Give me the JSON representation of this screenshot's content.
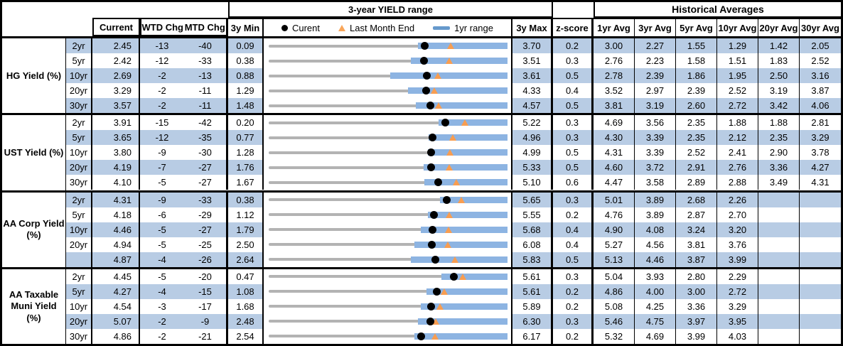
{
  "title_row": {
    "yield_range": "3-year YIELD range",
    "historical_averages": "Historical Averages"
  },
  "columns": {
    "current": "Current",
    "wtd_chg": "WTD Chg",
    "mtd_chg": "MTD Chg",
    "min_3y": "3y Min",
    "max_3y": "3y Max",
    "z_score": "z-score",
    "averages": [
      "1yr Avg",
      "3yr Avg",
      "5yr Avg",
      "10yr Avg",
      "20yr Avg",
      "30yr Avg"
    ]
  },
  "legend": {
    "current": "Curent",
    "last_month_end": "Last Month End",
    "range_1yr": "1yr range"
  },
  "colors": {
    "stripe": "#b8cce4",
    "bar_1yr_range": "#8db4e2",
    "track_3y_range": "#b3b3b3",
    "current_marker": "#000000",
    "last_month_end_marker": "#f79d51",
    "legend_dash": "#6699cc",
    "border": "#000000"
  },
  "chart_data": {
    "type": "table",
    "title": "3-year YIELD range",
    "legend_entries": [
      "Curent",
      "Last Month End",
      "1yr range"
    ],
    "marker_rule": "current = black dot, last month end = current - mtd_chg/100 (orange triangle), 1yr range = blue bar from range1yr_lo to range1yr_hi on a grey 3y min-max track",
    "groups": [
      {
        "label": "HG Yield (%)",
        "rows": [
          {
            "tenor": "2yr",
            "current": "2.45",
            "wtd": "-13",
            "mtd": "-40",
            "min_3y": "0.09",
            "max_3y": "3.70",
            "z_score": "0.2",
            "range1yr_lo": 2.35,
            "range1yr_hi": 3.7,
            "averages": [
              "3.00",
              "2.27",
              "1.55",
              "1.29",
              "1.42",
              "2.05"
            ]
          },
          {
            "tenor": "5yr",
            "current": "2.42",
            "wtd": "-12",
            "mtd": "-33",
            "min_3y": "0.38",
            "max_3y": "3.51",
            "z_score": "0.3",
            "range1yr_lo": 2.24,
            "range1yr_hi": 3.51,
            "averages": [
              "2.76",
              "2.23",
              "1.58",
              "1.51",
              "1.83",
              "2.52"
            ]
          },
          {
            "tenor": "10yr",
            "current": "2.69",
            "wtd": "-2",
            "mtd": "-13",
            "min_3y": "0.88",
            "max_3y": "3.61",
            "z_score": "0.5",
            "range1yr_lo": 2.27,
            "range1yr_hi": 3.61,
            "averages": [
              "2.78",
              "2.39",
              "1.86",
              "1.95",
              "2.50",
              "3.16"
            ]
          },
          {
            "tenor": "20yr",
            "current": "3.29",
            "wtd": "-2",
            "mtd": "-11",
            "min_3y": "1.29",
            "max_3y": "4.33",
            "z_score": "0.4",
            "range1yr_lo": 3.06,
            "range1yr_hi": 4.33,
            "averages": [
              "3.52",
              "2.97",
              "2.39",
              "2.52",
              "3.19",
              "3.87"
            ]
          },
          {
            "tenor": "30yr",
            "current": "3.57",
            "wtd": "-2",
            "mtd": "-11",
            "min_3y": "1.48",
            "max_3y": "4.57",
            "z_score": "0.5",
            "range1yr_lo": 3.38,
            "range1yr_hi": 4.57,
            "averages": [
              "3.81",
              "3.19",
              "2.60",
              "2.72",
              "3.42",
              "4.06"
            ]
          }
        ]
      },
      {
        "label": "UST Yield (%)",
        "rows": [
          {
            "tenor": "2yr",
            "current": "3.91",
            "wtd": "-15",
            "mtd": "-42",
            "min_3y": "0.20",
            "max_3y": "5.22",
            "z_score": "0.3",
            "range1yr_lo": 3.77,
            "range1yr_hi": 5.22,
            "averages": [
              "4.69",
              "3.56",
              "2.35",
              "1.88",
              "1.88",
              "2.81"
            ]
          },
          {
            "tenor": "5yr",
            "current": "3.65",
            "wtd": "-12",
            "mtd": "-35",
            "min_3y": "0.77",
            "max_3y": "4.96",
            "z_score": "0.3",
            "range1yr_lo": 3.57,
            "range1yr_hi": 4.96,
            "averages": [
              "4.30",
              "3.39",
              "2.35",
              "2.12",
              "2.35",
              "3.29"
            ]
          },
          {
            "tenor": "10yr",
            "current": "3.80",
            "wtd": "-9",
            "mtd": "-30",
            "min_3y": "1.28",
            "max_3y": "4.99",
            "z_score": "0.5",
            "range1yr_lo": 3.75,
            "range1yr_hi": 4.99,
            "averages": [
              "4.31",
              "3.39",
              "2.52",
              "2.41",
              "2.90",
              "3.78"
            ]
          },
          {
            "tenor": "20yr",
            "current": "4.19",
            "wtd": "-7",
            "mtd": "-27",
            "min_3y": "1.76",
            "max_3y": "5.33",
            "z_score": "0.5",
            "range1yr_lo": 4.08,
            "range1yr_hi": 5.33,
            "averages": [
              "4.60",
              "3.72",
              "2.91",
              "2.76",
              "3.36",
              "4.27"
            ]
          },
          {
            "tenor": "30yr",
            "current": "4.10",
            "wtd": "-5",
            "mtd": "-27",
            "min_3y": "1.67",
            "max_3y": "5.10",
            "z_score": "0.6",
            "range1yr_lo": 3.91,
            "range1yr_hi": 5.1,
            "averages": [
              "4.47",
              "3.58",
              "2.89",
              "2.88",
              "3.49",
              "4.31"
            ]
          }
        ]
      },
      {
        "label": "AA Corp Yield\n(%)",
        "rows": [
          {
            "tenor": "2yr",
            "current": "4.31",
            "wtd": "-9",
            "mtd": "-33",
            "min_3y": "0.38",
            "max_3y": "5.65",
            "z_score": "0.3",
            "range1yr_lo": 4.16,
            "range1yr_hi": 5.65,
            "averages": [
              "5.01",
              "3.89",
              "2.68",
              "2.26",
              "",
              ""
            ]
          },
          {
            "tenor": "5yr",
            "current": "4.18",
            "wtd": "-6",
            "mtd": "-29",
            "min_3y": "1.12",
            "max_3y": "5.55",
            "z_score": "0.2",
            "range1yr_lo": 4.07,
            "range1yr_hi": 5.55,
            "averages": [
              "4.76",
              "3.89",
              "2.87",
              "2.70",
              "",
              ""
            ]
          },
          {
            "tenor": "10yr",
            "current": "4.46",
            "wtd": "-5",
            "mtd": "-27",
            "min_3y": "1.79",
            "max_3y": "5.68",
            "z_score": "0.4",
            "range1yr_lo": 4.27,
            "range1yr_hi": 5.68,
            "averages": [
              "4.90",
              "4.08",
              "3.24",
              "3.20",
              "",
              ""
            ]
          },
          {
            "tenor": "20yr",
            "current": "4.94",
            "wtd": "-5",
            "mtd": "-25",
            "min_3y": "2.50",
            "max_3y": "6.08",
            "z_score": "0.4",
            "range1yr_lo": 4.68,
            "range1yr_hi": 6.08,
            "averages": [
              "5.27",
              "4.56",
              "3.81",
              "3.76",
              "",
              ""
            ]
          },
          {
            "tenor": "",
            "current": "4.87",
            "wtd": "-4",
            "mtd": "-26",
            "min_3y": "2.64",
            "max_3y": "5.83",
            "z_score": "0.5",
            "range1yr_lo": 4.54,
            "range1yr_hi": 5.83,
            "averages": [
              "5.13",
              "4.46",
              "3.87",
              "3.99",
              "",
              ""
            ]
          }
        ]
      },
      {
        "label": "AA Taxable\nMuni Yield\n(%)",
        "rows": [
          {
            "tenor": "2yr",
            "current": "4.45",
            "wtd": "-5",
            "mtd": "-20",
            "min_3y": "0.47",
            "max_3y": "5.61",
            "z_score": "0.3",
            "range1yr_lo": 4.19,
            "range1yr_hi": 5.61,
            "averages": [
              "5.04",
              "3.93",
              "2.80",
              "2.29",
              "",
              ""
            ]
          },
          {
            "tenor": "5yr",
            "current": "4.27",
            "wtd": "-4",
            "mtd": "-15",
            "min_3y": "1.08",
            "max_3y": "5.61",
            "z_score": "0.2",
            "range1yr_lo": 4.07,
            "range1yr_hi": 5.61,
            "averages": [
              "4.86",
              "4.00",
              "3.00",
              "2.72",
              "",
              ""
            ]
          },
          {
            "tenor": "10yr",
            "current": "4.54",
            "wtd": "-3",
            "mtd": "-17",
            "min_3y": "1.68",
            "max_3y": "5.89",
            "z_score": "0.2",
            "range1yr_lo": 4.36,
            "range1yr_hi": 5.89,
            "averages": [
              "5.08",
              "4.25",
              "3.36",
              "3.29",
              "",
              ""
            ]
          },
          {
            "tenor": "20yr",
            "current": "5.07",
            "wtd": "-2",
            "mtd": "-9",
            "min_3y": "2.48",
            "max_3y": "6.30",
            "z_score": "0.3",
            "range1yr_lo": 4.87,
            "range1yr_hi": 6.3,
            "averages": [
              "5.46",
              "4.75",
              "3.97",
              "3.95",
              "",
              ""
            ]
          },
          {
            "tenor": "30yr",
            "current": "4.86",
            "wtd": "-2",
            "mtd": "-21",
            "min_3y": "2.54",
            "max_3y": "6.17",
            "z_score": "0.2",
            "range1yr_lo": 4.75,
            "range1yr_hi": 6.17,
            "averages": [
              "5.32",
              "4.69",
              "3.99",
              "4.03",
              "",
              ""
            ]
          }
        ]
      }
    ]
  }
}
